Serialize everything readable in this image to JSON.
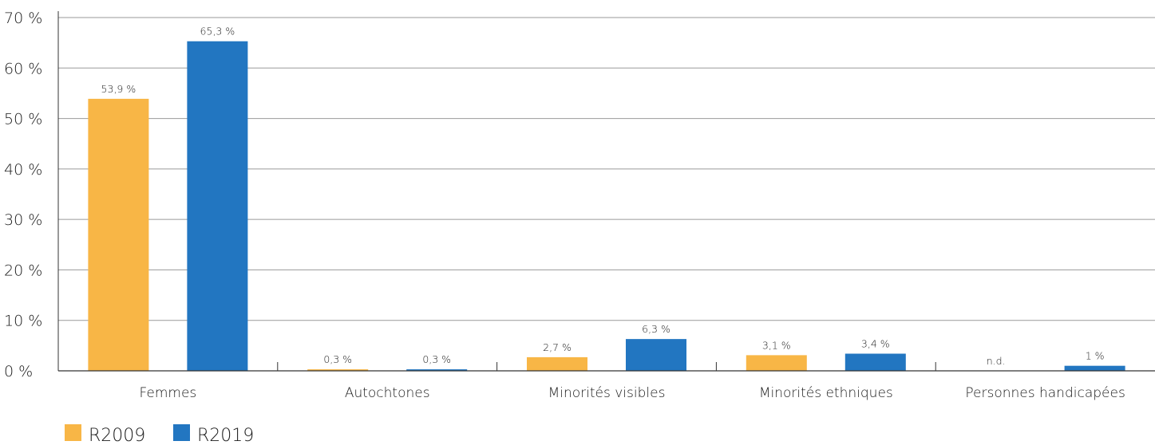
{
  "chart_data": {
    "type": "bar",
    "categories": [
      "Femmes",
      "Autochtones",
      "Minorités visibles",
      "Minorités ethniques",
      "Personnes handicapées"
    ],
    "series": [
      {
        "name": "R2009",
        "color": "#F8B646",
        "values": [
          53.9,
          0.3,
          2.7,
          3.1,
          0
        ],
        "labels": [
          "53,9 %",
          "0,3 %",
          "2,7 %",
          "3,1 %",
          "n.d."
        ]
      },
      {
        "name": "R2019",
        "color": "#2276C1",
        "values": [
          65.3,
          0.3,
          6.3,
          3.4,
          1
        ],
        "labels": [
          "65,3 %",
          "0,3 %",
          "6,3 %",
          "3,4 %",
          "1 %"
        ]
      }
    ],
    "yticks": [
      0,
      10,
      20,
      30,
      40,
      50,
      60,
      70
    ],
    "ytick_labels": [
      "0 %",
      "10 %",
      "20 %",
      "30 %",
      "40 %",
      "50 %",
      "60 %",
      "70 %"
    ],
    "ylim": [
      0,
      70
    ],
    "grid": true,
    "legend_position": "bottom-left"
  }
}
